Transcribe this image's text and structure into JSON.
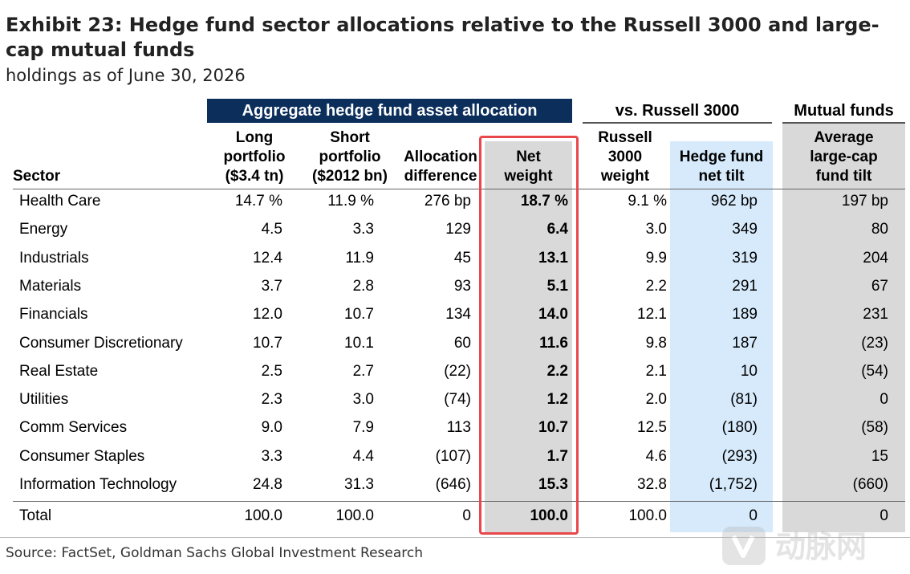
{
  "title": "Exhibit 23: Hedge fund sector allocations relative to the Russell 3000 and large-cap mutual funds",
  "subtitle": "holdings as of June 30, 2026",
  "groups": {
    "aggregate": "Aggregate hedge fund asset allocation",
    "russell": "vs. Russell 3000",
    "mutual": "Mutual funds"
  },
  "headers": {
    "sector": "Sector",
    "long": [
      "Long",
      "portfolio",
      "($3.4 tn)"
    ],
    "short": [
      "Short",
      "portfolio",
      "($2012 bn)"
    ],
    "alloc": [
      "Allocation",
      "difference"
    ],
    "net": [
      "Net",
      "weight"
    ],
    "russell": [
      "Russell",
      "3000",
      "weight"
    ],
    "tilt": [
      "Hedge fund",
      "net tilt"
    ],
    "mutual": [
      "Average",
      "large-cap",
      "fund tilt"
    ]
  },
  "source": "Source: FactSet, Goldman Sachs Global Investment Research",
  "watermark": "动脉网",
  "colors": {
    "header_bg": "#0b2e5b",
    "net_band": "#d9d9d9",
    "tilt_band": "#d6eafb",
    "highlight_box": "#e8474c"
  },
  "chart_data": {
    "type": "table",
    "columns": [
      "Sector",
      "Long portfolio ($3.4 tn)",
      "Short portfolio ($2012 bn)",
      "Allocation difference",
      "Net weight",
      "Russell 3000 weight",
      "Hedge fund net tilt",
      "Average large-cap fund tilt"
    ],
    "rows": [
      {
        "sector": "Health Care",
        "long": "14.7 %",
        "short": "11.9 %",
        "alloc": "276 bp",
        "net": "18.7 %",
        "russell": "9.1 %",
        "tilt": "962 bp",
        "mutual": "197 bp"
      },
      {
        "sector": "Energy",
        "long": "4.5",
        "short": "3.3",
        "alloc": "129",
        "net": "6.4",
        "russell": "3.0",
        "tilt": "349",
        "mutual": "80"
      },
      {
        "sector": "Industrials",
        "long": "12.4",
        "short": "11.9",
        "alloc": "45",
        "net": "13.1",
        "russell": "9.9",
        "tilt": "319",
        "mutual": "204"
      },
      {
        "sector": "Materials",
        "long": "3.7",
        "short": "2.8",
        "alloc": "93",
        "net": "5.1",
        "russell": "2.2",
        "tilt": "291",
        "mutual": "67"
      },
      {
        "sector": "Financials",
        "long": "12.0",
        "short": "10.7",
        "alloc": "134",
        "net": "14.0",
        "russell": "12.1",
        "tilt": "189",
        "mutual": "231"
      },
      {
        "sector": "Consumer Discretionary",
        "long": "10.7",
        "short": "10.1",
        "alloc": "60",
        "net": "11.6",
        "russell": "9.8",
        "tilt": "187",
        "mutual": "(23)"
      },
      {
        "sector": "Real Estate",
        "long": "2.5",
        "short": "2.7",
        "alloc": "(22)",
        "net": "2.2",
        "russell": "2.1",
        "tilt": "10",
        "mutual": "(54)"
      },
      {
        "sector": "Utilities",
        "long": "2.3",
        "short": "3.0",
        "alloc": "(74)",
        "net": "1.2",
        "russell": "2.0",
        "tilt": "(81)",
        "mutual": "0"
      },
      {
        "sector": "Comm Services",
        "long": "9.0",
        "short": "7.9",
        "alloc": "113",
        "net": "10.7",
        "russell": "12.5",
        "tilt": "(180)",
        "mutual": "(58)"
      },
      {
        "sector": "Consumer Staples",
        "long": "3.3",
        "short": "4.4",
        "alloc": "(107)",
        "net": "1.7",
        "russell": "4.6",
        "tilt": "(293)",
        "mutual": "15"
      },
      {
        "sector": "Information Technology",
        "long": "24.8",
        "short": "31.3",
        "alloc": "(646)",
        "net": "15.3",
        "russell": "32.8",
        "tilt": "(1,752)",
        "mutual": "(660)"
      }
    ],
    "total": {
      "sector": "Total",
      "long": "100.0",
      "short": "100.0",
      "alloc": "0",
      "net": "100.0",
      "russell": "100.0",
      "tilt": "0",
      "mutual": "0"
    }
  }
}
